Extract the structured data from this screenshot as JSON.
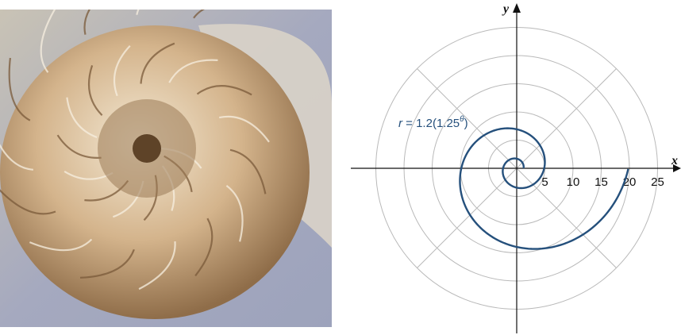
{
  "photo": {
    "subject": "nautilus-shell-cross-section",
    "colors": {
      "background": "#a3a7bd",
      "shell_light": "#e9dcc3",
      "shell_mid": "#c8a77f",
      "shell_dark": "#6e5134"
    }
  },
  "chart_data": {
    "type": "polar",
    "axes": {
      "x_label": "x",
      "y_label": "y"
    },
    "x_ticks": [
      "5",
      "10",
      "15",
      "20",
      "25"
    ],
    "x_tick_values": [
      5,
      10,
      15,
      20,
      25
    ],
    "rings": [
      5,
      10,
      15,
      20,
      25
    ],
    "radial_lines_deg": [
      45,
      135,
      225,
      315
    ],
    "xlim": [
      -27.5,
      27.5
    ],
    "ylim": [
      -27.5,
      27.5
    ],
    "grid": true,
    "series": [
      {
        "equation": {
          "lhs": "r",
          "rhs": " = 1.2(1.25",
          "exponent": "θ",
          "close": ")"
        },
        "a": 1.2,
        "b": 1.25,
        "theta_range": [
          0,
          12.57
        ],
        "color": "#25507c"
      }
    ]
  }
}
